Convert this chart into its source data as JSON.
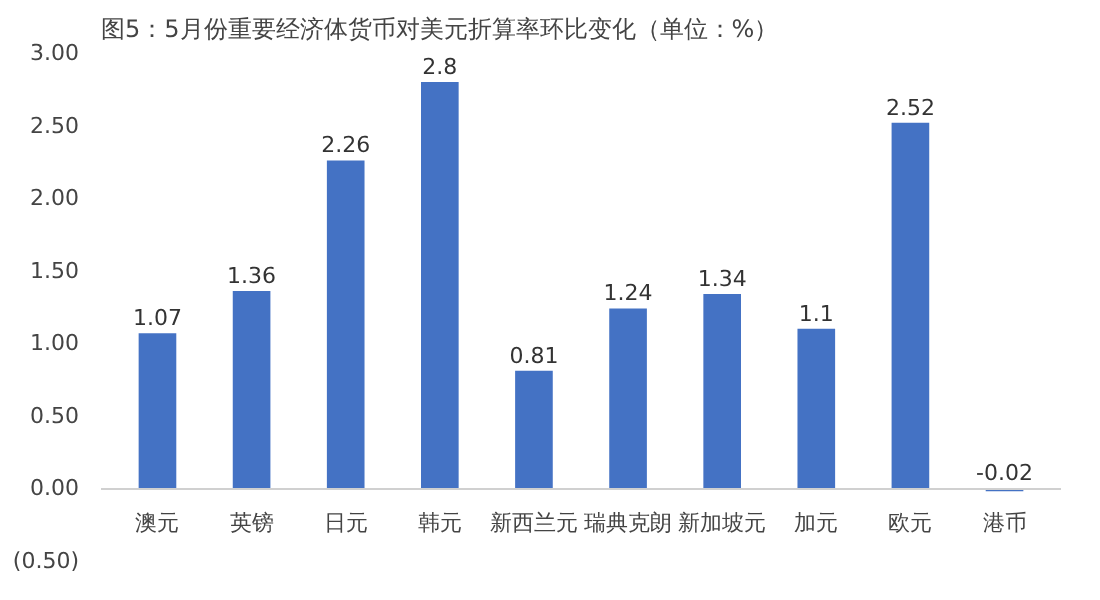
{
  "chart_data": {
    "type": "bar",
    "title": "图5：5月份重要经济体货币对美元折算率环比变化（单位：%）",
    "categories": [
      "澳元",
      "英镑",
      "日元",
      "韩元",
      "新西兰元",
      "瑞典克朗",
      "新加坡元",
      "加元",
      "欧元",
      "港币"
    ],
    "values": [
      1.07,
      1.36,
      2.26,
      2.8,
      0.81,
      1.24,
      1.34,
      1.1,
      2.52,
      -0.02
    ],
    "value_labels": [
      "1.07",
      "1.36",
      "2.26",
      "2.8",
      "0.81",
      "1.24",
      "1.34",
      "1.1",
      "2.52",
      "-0.02"
    ],
    "color": "#4472c4",
    "ylim": [
      -0.5,
      3.0
    ],
    "yticks": [
      {
        "value": -0.5,
        "label": "(0.50)"
      },
      {
        "value": 0,
        "label": "0.00"
      },
      {
        "value": 0.5,
        "label": "0.50"
      },
      {
        "value": 1,
        "label": "1.00"
      },
      {
        "value": 1.5,
        "label": "1.50"
      },
      {
        "value": 2,
        "label": "2.00"
      },
      {
        "value": 2.5,
        "label": "2.50"
      },
      {
        "value": 3,
        "label": "3.00"
      }
    ],
    "grid": false
  }
}
